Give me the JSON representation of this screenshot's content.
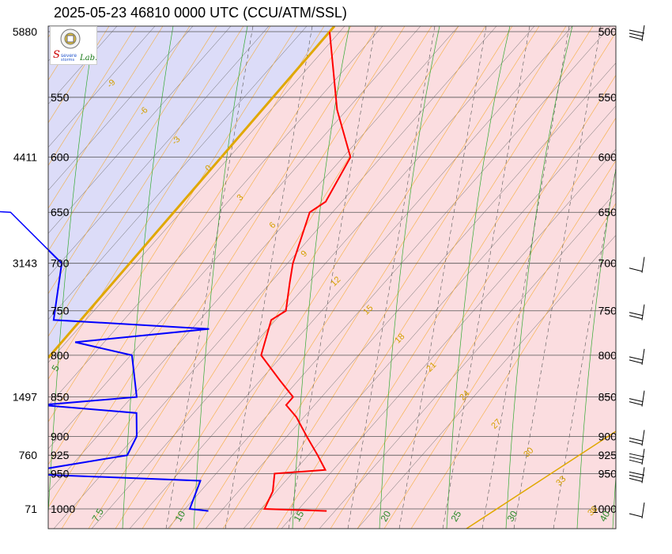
{
  "title": "2025-05-23 46810 0000 UTC (CCU/ATM/SSL)",
  "colors": {
    "cold_region": "#dcdcf8",
    "warm_region": "#fbdde0",
    "temperature": "#ff0000",
    "dewpoint": "#0000ff",
    "isobar": "#555555",
    "isotherm": "#666666",
    "mixing_ratio": "#d8a800",
    "dry_adiabat": "#f5a623",
    "moist_adiabat": "#33aa33",
    "zero_isotherm": "#e0a800"
  },
  "logo_icon": "lab-logo-icon",
  "chart_data": {
    "type": "line",
    "chart_kind": "skew-t",
    "station": "46810",
    "x": "temperature (degC)",
    "y": "pressure (hPa)",
    "y_scale": "log",
    "ylim": [
      1000,
      500
    ],
    "pressure_labels": [
      "500",
      "550",
      "600",
      "650",
      "700",
      "750",
      "800",
      "850",
      "900",
      "925",
      "950",
      "1000"
    ],
    "height_labels": [
      {
        "p": 500,
        "label": "5880"
      },
      {
        "p": 600,
        "label": "4411"
      },
      {
        "p": 700,
        "label": "3143"
      },
      {
        "p": 850,
        "label": "1497"
      },
      {
        "p": 925,
        "label": "760"
      },
      {
        "p": 1000,
        "label": "71"
      }
    ],
    "isotherm_labels": [
      "5",
      "7.5",
      "10",
      "15",
      "20",
      "25",
      "30",
      "40"
    ],
    "mixing_ratio_labels": [
      "-9",
      "-6",
      "-3",
      "0",
      "3",
      "6",
      "9",
      "12",
      "15",
      "18",
      "21",
      "24",
      "27",
      "30",
      "33",
      "36"
    ],
    "series": [
      {
        "key": "temperature",
        "points": [
          [
            1003,
            30.2
          ],
          [
            1000,
            25.5
          ],
          [
            975,
            25
          ],
          [
            950,
            24
          ],
          [
            945,
            27.5
          ],
          [
            925,
            26
          ],
          [
            900,
            24
          ],
          [
            875,
            22
          ],
          [
            860,
            20.5
          ],
          [
            850,
            20.5
          ],
          [
            830,
            18.5
          ],
          [
            800,
            15.5
          ],
          [
            760,
            14
          ],
          [
            750,
            14.5
          ],
          [
            720,
            13
          ],
          [
            700,
            12
          ],
          [
            650,
            10
          ],
          [
            640,
            10.5
          ],
          [
            600,
            9.5
          ],
          [
            560,
            5.5
          ],
          [
            500,
            0
          ]
        ]
      },
      {
        "key": "dewpoint",
        "points": [
          [
            1003,
            21.5
          ],
          [
            1000,
            20
          ],
          [
            960,
            19
          ],
          [
            950,
            5
          ],
          [
            925,
            12
          ],
          [
            900,
            11.5
          ],
          [
            870,
            10
          ],
          [
            860,
            2.5
          ],
          [
            850,
            9
          ],
          [
            800,
            6
          ],
          [
            785,
            1
          ],
          [
            770,
            10
          ],
          [
            760,
            -2
          ],
          [
            700,
            -5
          ],
          [
            650,
            -12
          ],
          [
            640,
            -28
          ],
          [
            600,
            -40
          ],
          [
            590,
            -30
          ],
          [
            550,
            -44
          ]
        ]
      }
    ]
  }
}
